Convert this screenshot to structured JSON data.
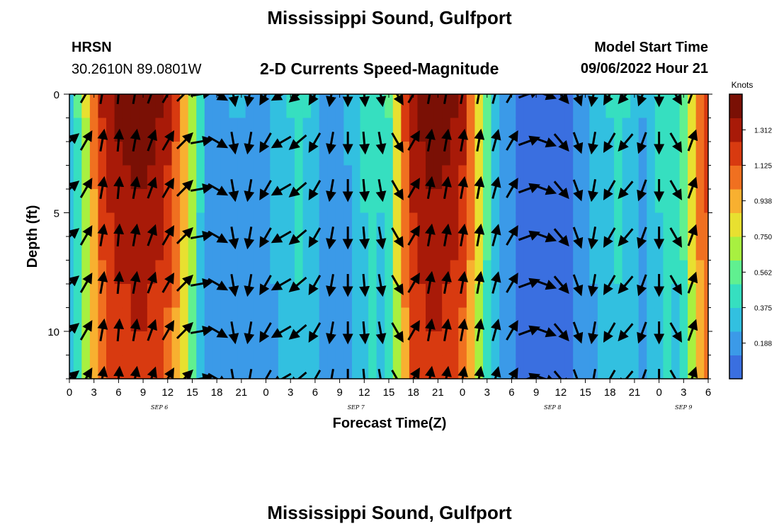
{
  "header": {
    "title": "Mississippi Sound, Gulfport",
    "station": "HRSN",
    "coords": "30.2610N  89.0801W",
    "subtitle": "2-D Currents Speed-Magnitude",
    "model_label": "Model Start Time",
    "model_time": "09/06/2022 Hour 21"
  },
  "footer": {
    "title": "Mississippi Sound, Gulfport"
  },
  "chart_data": {
    "type": "heatmap",
    "title": "2-D Currents Speed-Magnitude",
    "xlabel": "Forecast Time(Z)",
    "ylabel": "Depth (ft)",
    "x_range_hours": [
      0,
      78
    ],
    "y_range_ft": [
      0,
      12
    ],
    "x_ticks": [
      "0",
      "3",
      "6",
      "9",
      "12",
      "15",
      "18",
      "21",
      "0",
      "3",
      "6",
      "9",
      "12",
      "15",
      "18",
      "21",
      "0",
      "3",
      "6",
      "9",
      "12",
      "15",
      "18",
      "21",
      "0",
      "3",
      "6"
    ],
    "y_ticks": [
      "0",
      "5",
      "10"
    ],
    "date_labels": [
      {
        "text": "SEP 6",
        "hour": 11
      },
      {
        "text": "SEP 7",
        "hour": 35
      },
      {
        "text": "SEP 8",
        "hour": 59
      },
      {
        "text": "SEP 9",
        "hour": 75
      }
    ],
    "colorbar": {
      "unit": "Knots",
      "ticks": [
        "1.312",
        "1.125",
        "0.938",
        "0.750",
        "0.562",
        "0.375",
        "0.188"
      ],
      "min": 0.0,
      "max": 1.5,
      "colors": [
        "#3a6fe0",
        "#3b9ae8",
        "#32c0e0",
        "#36dfc0",
        "#60f090",
        "#a8f040",
        "#e8e030",
        "#f8b030",
        "#f07020",
        "#d83a10",
        "#a81a08",
        "#7a1005"
      ]
    },
    "speed_profile_hours": [
      0,
      1,
      2,
      3,
      4,
      5,
      6,
      7,
      8,
      9,
      10,
      11,
      12,
      13,
      14,
      15,
      16,
      17,
      18,
      19,
      20,
      21,
      22,
      23,
      24,
      25,
      26,
      27,
      28,
      29,
      30,
      31,
      32,
      33,
      34,
      35,
      36,
      37,
      38,
      39,
      40,
      41,
      42,
      43,
      44,
      45,
      46,
      47,
      48,
      49,
      50,
      51,
      52,
      53,
      54,
      55,
      56,
      57,
      58,
      59,
      60,
      61,
      62,
      63,
      64,
      65,
      66,
      67,
      68,
      69,
      70,
      71,
      72,
      73,
      74,
      75,
      76,
      77,
      78
    ],
    "speed_profile_knots": [
      0.3,
      0.5,
      0.75,
      1.05,
      1.25,
      1.35,
      1.4,
      1.42,
      1.45,
      1.45,
      1.42,
      1.38,
      1.3,
      1.15,
      0.95,
      0.7,
      0.4,
      0.2,
      0.15,
      0.2,
      0.25,
      0.25,
      0.2,
      0.2,
      0.22,
      0.28,
      0.33,
      0.38,
      0.42,
      0.38,
      0.3,
      0.24,
      0.2,
      0.22,
      0.26,
      0.32,
      0.4,
      0.45,
      0.4,
      0.5,
      0.85,
      1.15,
      1.35,
      1.4,
      1.45,
      1.45,
      1.42,
      1.38,
      1.3,
      1.1,
      0.85,
      0.55,
      0.3,
      0.2,
      0.15,
      0.12,
      0.08,
      0.05,
      0.05,
      0.05,
      0.08,
      0.12,
      0.18,
      0.22,
      0.28,
      0.33,
      0.38,
      0.42,
      0.38,
      0.3,
      0.25,
      0.3,
      0.4,
      0.45,
      0.42,
      0.55,
      0.85,
      1.1,
      1.2
    ],
    "vector_hours": [
      0,
      2,
      4,
      6,
      8,
      10,
      12,
      14,
      16,
      18,
      20,
      22,
      24,
      26,
      28,
      30,
      32,
      34,
      36,
      38,
      40,
      42,
      44,
      46,
      48,
      50,
      52,
      54,
      56,
      58,
      60,
      62,
      64,
      66,
      68,
      70,
      72,
      74,
      76
    ],
    "vector_depths_ft": [
      0,
      2,
      4,
      6,
      8,
      10,
      12
    ],
    "vector_direction_deg": [
      40,
      60,
      80,
      85,
      80,
      70,
      60,
      45,
      10,
      -30,
      -80,
      -100,
      -120,
      -150,
      -140,
      -120,
      -100,
      -90,
      -85,
      -80,
      -60,
      60,
      80,
      80,
      80,
      80,
      75,
      60,
      20,
      -20,
      -50,
      -70,
      -100,
      -120,
      -130,
      -110,
      -90,
      -60,
      70
    ]
  },
  "colors": {
    "background": "#ffffff",
    "arrow": "#000000"
  }
}
